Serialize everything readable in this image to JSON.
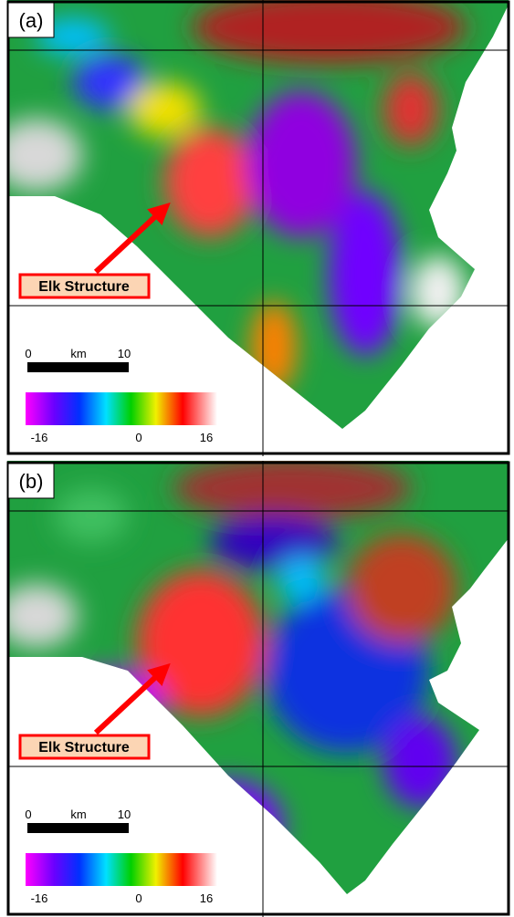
{
  "panels": [
    {
      "label": "(a)",
      "annotation": "Elk Structure",
      "scale_bar": {
        "start": 0,
        "unit": "km",
        "end": 10
      },
      "colorbar": {
        "ticks": [
          -16,
          0,
          16
        ]
      }
    },
    {
      "label": "(b)",
      "annotation": "Elk Structure",
      "scale_bar": {
        "start": 0,
        "unit": "km",
        "end": 10
      },
      "colorbar": {
        "ticks": [
          -16,
          0,
          16
        ]
      }
    }
  ]
}
